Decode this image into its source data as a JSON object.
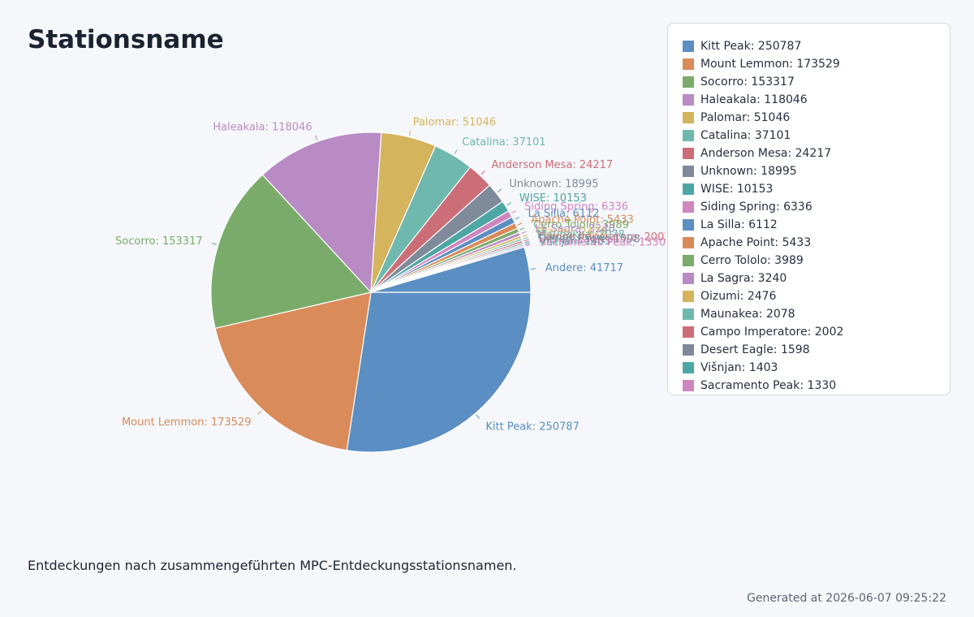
{
  "title": "Stationsname",
  "caption": "Entdeckungen nach zusammengeführten MPC-Entdeckungsstationsnamen.",
  "footer": "Generated at 2026-06-07 09:25:22",
  "chart_data": {
    "type": "pie",
    "title": "Stationsname",
    "label_format": "{name}: {value}",
    "start_angle_deg": 0,
    "direction": "clockwise",
    "slices": [
      {
        "name": "Kitt Peak",
        "value": 250787,
        "color": "#5b8ec2"
      },
      {
        "name": "Mount Lemmon",
        "value": 173529,
        "color": "#d98b5a"
      },
      {
        "name": "Socorro",
        "value": 153317,
        "color": "#7aab6a"
      },
      {
        "name": "Haleakala",
        "value": 118046,
        "color": "#b88bc4"
      },
      {
        "name": "Palomar",
        "value": 51046,
        "color": "#d4b45c"
      },
      {
        "name": "Catalina",
        "value": 37101,
        "color": "#6fb8ad"
      },
      {
        "name": "Anderson Mesa",
        "value": 24217,
        "color": "#cc6e78"
      },
      {
        "name": "Unknown",
        "value": 18995,
        "color": "#7f8a9b"
      },
      {
        "name": "WISE",
        "value": 10153,
        "color": "#4da6a3"
      },
      {
        "name": "Siding Spring",
        "value": 6336,
        "color": "#cf86c0"
      },
      {
        "name": "La Silla",
        "value": 6112,
        "color": "#5b8ec2"
      },
      {
        "name": "Apache Point",
        "value": 5433,
        "color": "#d98b5a"
      },
      {
        "name": "Cerro Tololo",
        "value": 3989,
        "color": "#7aab6a"
      },
      {
        "name": "La Sagra",
        "value": 3240,
        "color": "#b88bc4"
      },
      {
        "name": "Oizumi",
        "value": 2476,
        "color": "#d4b45c"
      },
      {
        "name": "Maunakea",
        "value": 2078,
        "color": "#6fb8ad"
      },
      {
        "name": "Campo Imperatore",
        "value": 2002,
        "color": "#cc6e78"
      },
      {
        "name": "Desert Eagle",
        "value": 1598,
        "color": "#7f8a9b"
      },
      {
        "name": "Višnjan",
        "value": 1403,
        "color": "#4da6a3"
      },
      {
        "name": "Sacramento Peak",
        "value": 1330,
        "color": "#cf86c0"
      },
      {
        "name": "Andere",
        "value": 41717,
        "color": "#5b8ec2"
      }
    ],
    "legend": {
      "placement": "top-right",
      "items": [
        {
          "label": "Kitt Peak: 250787",
          "color": "#5b8ec2"
        },
        {
          "label": "Mount Lemmon: 173529",
          "color": "#d98b5a"
        },
        {
          "label": "Socorro: 153317",
          "color": "#7aab6a"
        },
        {
          "label": "Haleakala: 118046",
          "color": "#b88bc4"
        },
        {
          "label": "Palomar: 51046",
          "color": "#d4b45c"
        },
        {
          "label": "Catalina: 37101",
          "color": "#6fb8ad"
        },
        {
          "label": "Anderson Mesa: 24217",
          "color": "#cc6e78"
        },
        {
          "label": "Unknown: 18995",
          "color": "#7f8a9b"
        },
        {
          "label": "WISE: 10153",
          "color": "#4da6a3"
        },
        {
          "label": "Siding Spring: 6336",
          "color": "#cf86c0"
        },
        {
          "label": "La Silla: 6112",
          "color": "#5b8ec2"
        },
        {
          "label": "Apache Point: 5433",
          "color": "#d98b5a"
        },
        {
          "label": "Cerro Tololo: 3989",
          "color": "#7aab6a"
        },
        {
          "label": "La Sagra: 3240",
          "color": "#b88bc4"
        },
        {
          "label": "Oizumi: 2476",
          "color": "#d4b45c"
        },
        {
          "label": "Maunakea: 2078",
          "color": "#6fb8ad"
        },
        {
          "label": "Campo Imperatore: 2002",
          "color": "#cc6e78"
        },
        {
          "label": "Desert Eagle: 1598",
          "color": "#7f8a9b"
        },
        {
          "label": "Višnjan: 1403",
          "color": "#4da6a3"
        },
        {
          "label": "Sacramento Peak: 1330",
          "color": "#cf86c0"
        }
      ]
    }
  }
}
